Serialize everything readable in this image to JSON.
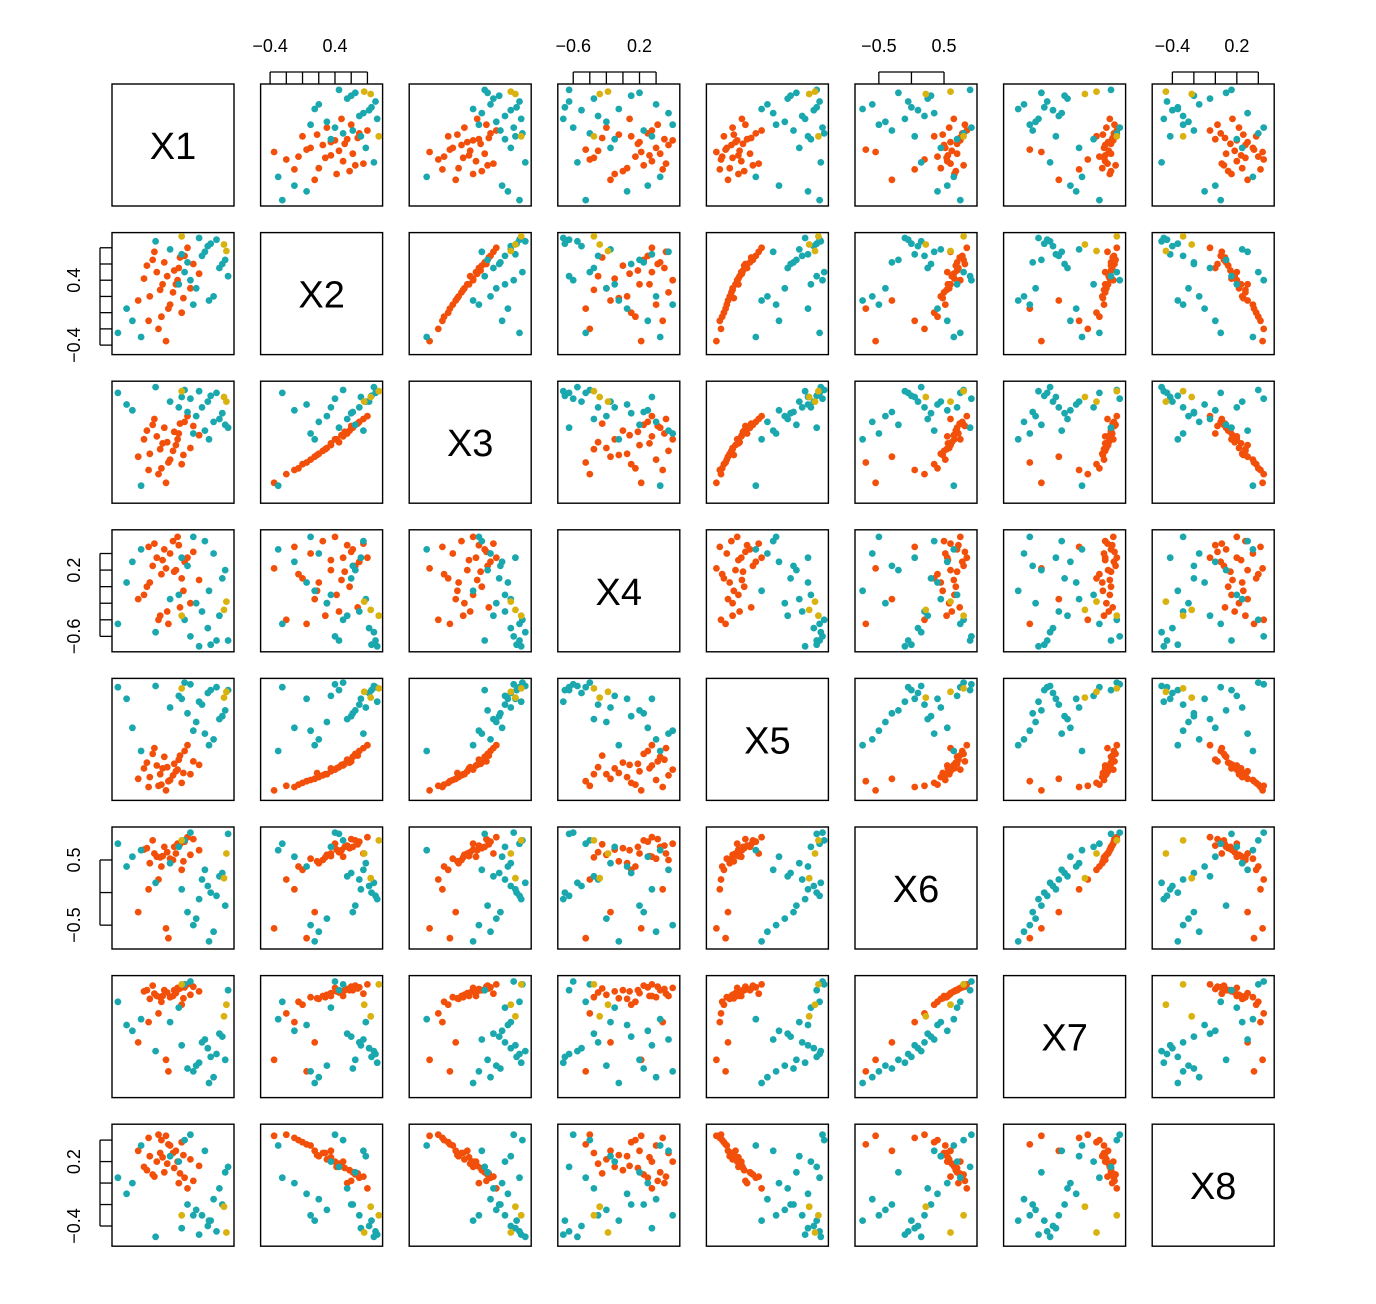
{
  "chart_data": {
    "type": "scatter",
    "subtype": "scatterplot-matrix",
    "title": "",
    "variables": [
      "X1",
      "X2",
      "X3",
      "X4",
      "X5",
      "X6",
      "X7",
      "X8"
    ],
    "variable_ranges": {
      "X1": [
        -1.0,
        1.0
      ],
      "X2": [
        -0.48,
        0.95
      ],
      "X3": [
        -1.0,
        1.0
      ],
      "X4": [
        -0.75,
        0.65
      ],
      "X5": [
        -1.0,
        1.0
      ],
      "X6": [
        -0.82,
        0.96
      ],
      "X7": [
        -1.0,
        1.0
      ],
      "X8": [
        -0.56,
        0.52
      ]
    },
    "axes": {
      "top": [
        {
          "column": "X2",
          "ticks": [
            -0.4,
            -0.2,
            0.0,
            0.2,
            0.4,
            0.6,
            0.8
          ],
          "tick_labels": [
            "−0.4",
            "0.4"
          ],
          "label_at": [
            -0.4,
            0.4
          ]
        },
        {
          "column": "X4",
          "ticks": [
            -0.6,
            -0.4,
            -0.2,
            0.0,
            0.2,
            0.4
          ],
          "tick_labels": [
            "−0.6",
            "0.2"
          ],
          "label_at": [
            -0.6,
            0.2
          ]
        },
        {
          "column": "X6",
          "ticks": [
            -0.5,
            0.0,
            0.5
          ],
          "tick_labels": [
            "−0.5",
            "0.5"
          ],
          "label_at": [
            -0.5,
            0.5
          ]
        },
        {
          "column": "X8",
          "ticks": [
            -0.4,
            -0.2,
            0.0,
            0.2,
            0.4
          ],
          "tick_labels": [
            "−0.4",
            "0.2"
          ],
          "label_at": [
            -0.4,
            0.2
          ]
        }
      ],
      "left": [
        {
          "row": "X2",
          "ticks": [
            -0.4,
            -0.2,
            0.0,
            0.2,
            0.4,
            0.6,
            0.8
          ],
          "tick_labels": [
            "−0.4",
            "0.4"
          ],
          "label_at": [
            -0.4,
            0.4
          ]
        },
        {
          "row": "X4",
          "ticks": [
            -0.6,
            -0.4,
            -0.2,
            0.0,
            0.2,
            0.4
          ],
          "tick_labels": [
            "−0.6",
            "0.2"
          ],
          "label_at": [
            -0.6,
            0.2
          ]
        },
        {
          "row": "X6",
          "ticks": [
            -0.5,
            0.0,
            0.5
          ],
          "tick_labels": [
            "−0.5",
            "0.5"
          ],
          "label_at": [
            -0.5,
            0.5
          ]
        },
        {
          "row": "X8",
          "ticks": [
            -0.4,
            -0.2,
            0.0,
            0.2,
            0.4
          ],
          "tick_labels": [
            "−0.4",
            "0.2"
          ],
          "label_at": [
            -0.4,
            0.2
          ]
        }
      ]
    },
    "groups": [
      {
        "color": "#F2500A",
        "label": ""
      },
      {
        "color": "#1AA8AE",
        "label": ""
      },
      {
        "color": "#D9B20F",
        "label": ""
      }
    ],
    "grid": false,
    "legend": "none",
    "points": [
      {
        "g": 0,
        "X1": -0.28,
        "X2": 0.5,
        "X3": 0.1,
        "X4": 0.35,
        "X5": -0.45,
        "X6": 0.55,
        "X7": 0.7,
        "X8": 0.2
      },
      {
        "g": 0,
        "X1": -0.15,
        "X2": 0.62,
        "X3": 0.25,
        "X4": 0.45,
        "X5": -0.3,
        "X6": 0.7,
        "X7": 0.8,
        "X8": 0.1
      },
      {
        "g": 0,
        "X1": 0.05,
        "X2": 0.35,
        "X3": -0.05,
        "X4": 0.2,
        "X5": -0.55,
        "X6": 0.6,
        "X7": 0.75,
        "X8": 0.3
      },
      {
        "g": 0,
        "X1": -0.4,
        "X2": 0.2,
        "X3": -0.2,
        "X4": 0.05,
        "X5": -0.65,
        "X6": 0.45,
        "X7": 0.65,
        "X8": 0.25
      },
      {
        "g": 0,
        "X1": 0.2,
        "X2": 0.7,
        "X3": 0.35,
        "X4": 0.3,
        "X5": -0.2,
        "X6": 0.78,
        "X7": 0.85,
        "X8": 0.05
      },
      {
        "g": 0,
        "X1": -0.05,
        "X2": 0.1,
        "X3": -0.3,
        "X4": 0.4,
        "X5": -0.7,
        "X6": 0.52,
        "X7": 0.68,
        "X8": 0.35
      },
      {
        "g": 0,
        "X1": -0.5,
        "X2": 0.42,
        "X3": 0.05,
        "X4": -0.1,
        "X5": -0.5,
        "X6": 0.66,
        "X7": 0.78,
        "X8": 0.15
      },
      {
        "g": 0,
        "X1": 0.1,
        "X2": 0.55,
        "X3": 0.15,
        "X4": 0.5,
        "X5": -0.35,
        "X6": 0.72,
        "X7": 0.82,
        "X8": 0.0
      },
      {
        "g": 0,
        "X1": -0.2,
        "X2": -0.05,
        "X3": -0.45,
        "X4": 0.15,
        "X5": -0.78,
        "X6": 0.4,
        "X7": 0.6,
        "X8": 0.4
      },
      {
        "g": 0,
        "X1": 0.3,
        "X2": 0.3,
        "X3": -0.1,
        "X4": -0.2,
        "X5": -0.6,
        "X6": 0.58,
        "X7": 0.72,
        "X8": 0.22
      },
      {
        "g": 0,
        "X1": -0.35,
        "X2": 0.65,
        "X3": 0.3,
        "X4": 0.25,
        "X5": -0.25,
        "X6": 0.8,
        "X7": 0.88,
        "X8": 0.08
      },
      {
        "g": 0,
        "X1": 0.0,
        "X2": 0.25,
        "X3": -0.15,
        "X4": 0.55,
        "X5": -0.62,
        "X6": 0.5,
        "X7": 0.7,
        "X8": 0.28
      },
      {
        "g": 0,
        "X1": -0.1,
        "X2": 0.45,
        "X3": 0.0,
        "X4": -0.3,
        "X5": -0.48,
        "X6": 0.62,
        "X7": 0.76,
        "X8": 0.18
      },
      {
        "g": 0,
        "X1": 0.15,
        "X2": 0.0,
        "X3": -0.38,
        "X4": 0.1,
        "X5": -0.75,
        "X6": 0.35,
        "X7": 0.55,
        "X8": 0.38
      },
      {
        "g": 0,
        "X1": -0.45,
        "X2": 0.58,
        "X3": 0.2,
        "X4": 0.0,
        "X5": -0.4,
        "X6": 0.68,
        "X7": 0.8,
        "X8": 0.12
      },
      {
        "g": 0,
        "X1": 0.25,
        "X2": 0.8,
        "X3": 0.45,
        "X4": 0.35,
        "X5": -0.1,
        "X6": 0.85,
        "X7": 0.9,
        "X8": -0.05
      },
      {
        "g": 0,
        "X1": -0.25,
        "X2": -0.2,
        "X3": -0.55,
        "X4": -0.4,
        "X5": -0.8,
        "X6": 0.2,
        "X7": 0.4,
        "X8": 0.45
      },
      {
        "g": 0,
        "X1": 0.08,
        "X2": 0.4,
        "X3": 0.05,
        "X4": 0.6,
        "X5": -0.52,
        "X6": 0.75,
        "X7": 0.84,
        "X8": 0.2
      },
      {
        "g": 0,
        "X1": -0.6,
        "X2": 0.15,
        "X3": -0.25,
        "X4": -0.15,
        "X5": -0.68,
        "X6": -0.3,
        "X7": -0.1,
        "X8": 0.3
      },
      {
        "g": 0,
        "X1": 0.35,
        "X2": 0.6,
        "X3": 0.28,
        "X4": 0.42,
        "X5": -0.38,
        "X6": 0.82,
        "X7": 0.86,
        "X8": 0.02
      },
      {
        "g": 0,
        "X1": -0.12,
        "X2": -0.35,
        "X3": -0.7,
        "X4": 0.22,
        "X5": -0.88,
        "X6": -0.55,
        "X7": -0.4,
        "X8": 0.44
      },
      {
        "g": 0,
        "X1": 0.18,
        "X2": 0.18,
        "X3": -0.22,
        "X4": -0.05,
        "X5": -0.58,
        "X6": 0.48,
        "X7": 0.66,
        "X8": 0.26
      },
      {
        "g": 0,
        "X1": -0.32,
        "X2": 0.75,
        "X3": 0.4,
        "X4": 0.52,
        "X5": -0.15,
        "X6": 0.6,
        "X7": 0.74,
        "X8": 0.06
      },
      {
        "g": 0,
        "X1": 0.45,
        "X2": 0.48,
        "X3": 0.12,
        "X4": 0.08,
        "X5": -0.44,
        "X6": 0.65,
        "X7": 0.78,
        "X8": 0.16
      },
      {
        "g": 0,
        "X1": -0.08,
        "X2": 0.05,
        "X3": -0.35,
        "X4": -0.45,
        "X5": -0.72,
        "X6": -0.7,
        "X7": -0.6,
        "X8": 0.36
      },
      {
        "g": 0,
        "X1": -0.18,
        "X2": 0.35,
        "X3": -0.02,
        "X4": 0.32,
        "X5": -0.5,
        "X6": 0.56,
        "X7": 0.7,
        "X8": 0.24
      },
      {
        "g": 0,
        "X1": 0.12,
        "X2": 0.68,
        "X3": 0.32,
        "X4": -0.25,
        "X5": -0.28,
        "X6": 0.74,
        "X7": 0.83,
        "X8": 0.09
      },
      {
        "g": 0,
        "X1": -0.42,
        "X2": -0.1,
        "X3": -0.48,
        "X4": 0.48,
        "X5": -0.82,
        "X6": 0.05,
        "X7": 0.25,
        "X8": 0.42
      },
      {
        "g": 0,
        "X1": 0.02,
        "X2": 0.52,
        "X3": 0.18,
        "X4": 0.18,
        "X5": -0.42,
        "X6": 0.7,
        "X7": 0.8,
        "X8": 0.14
      },
      {
        "g": 0,
        "X1": -0.22,
        "X2": 0.28,
        "X3": -0.12,
        "X4": -0.35,
        "X5": -0.6,
        "X6": 0.54,
        "X7": 0.68,
        "X8": 0.28
      },
      {
        "g": 1,
        "X1": 0.6,
        "X2": 0.82,
        "X3": 0.7,
        "X4": -0.5,
        "X5": 0.8,
        "X6": 0.1,
        "X7": -0.2,
        "X8": -0.4
      },
      {
        "g": 1,
        "X1": 0.75,
        "X2": 0.9,
        "X3": 0.85,
        "X4": -0.65,
        "X5": 0.9,
        "X6": -0.05,
        "X7": -0.3,
        "X8": -0.45
      },
      {
        "g": 1,
        "X1": 0.5,
        "X2": 0.7,
        "X3": 0.6,
        "X4": -0.3,
        "X5": 0.6,
        "X6": 0.2,
        "X7": -0.1,
        "X8": -0.3
      },
      {
        "g": 1,
        "X1": 0.85,
        "X2": 0.6,
        "X3": 0.5,
        "X4": 0.1,
        "X5": 0.4,
        "X6": 0.3,
        "X7": 0.0,
        "X8": -0.2
      },
      {
        "g": 1,
        "X1": 0.3,
        "X2": 0.4,
        "X3": 0.75,
        "X4": -0.6,
        "X5": 0.95,
        "X6": 0.92,
        "X7": 0.95,
        "X8": 0.45
      },
      {
        "g": 1,
        "X1": -0.7,
        "X2": -0.1,
        "X3": 0.55,
        "X4": 0.3,
        "X5": 0.2,
        "X6": 0.55,
        "X7": 0.1,
        "X8": 0.0
      },
      {
        "g": 1,
        "X1": 0.65,
        "X2": 0.85,
        "X3": 0.8,
        "X4": -0.7,
        "X5": 0.85,
        "X6": 0.0,
        "X7": -0.35,
        "X8": -0.35
      },
      {
        "g": 1,
        "X1": 0.4,
        "X2": 0.3,
        "X3": 0.45,
        "X4": -0.2,
        "X5": 0.3,
        "X6": -0.4,
        "X7": -0.5,
        "X8": -0.25
      },
      {
        "g": 1,
        "X1": -0.8,
        "X2": 0.05,
        "X3": 0.65,
        "X4": 0.05,
        "X5": 0.7,
        "X6": 0.4,
        "X7": 0.2,
        "X8": -0.1
      },
      {
        "g": 1,
        "X1": 0.55,
        "X2": 0.75,
        "X3": 0.2,
        "X4": 0.55,
        "X5": 0.1,
        "X6": 0.35,
        "X7": -0.05,
        "X8": 0.3
      },
      {
        "g": 1,
        "X1": 0.2,
        "X2": 0.5,
        "X3": 0.9,
        "X4": -0.4,
        "X5": 0.98,
        "X6": 0.8,
        "X7": 0.9,
        "X8": 0.4
      },
      {
        "g": 1,
        "X1": 0.7,
        "X2": 0.2,
        "X3": 0.35,
        "X4": 0.4,
        "X5": 0.0,
        "X6": -0.6,
        "X7": -0.7,
        "X8": -0.15
      },
      {
        "g": 1,
        "X1": -0.3,
        "X2": 0.88,
        "X3": 0.95,
        "X4": -0.55,
        "X5": 0.92,
        "X6": 0.15,
        "X7": -0.25,
        "X8": -0.5
      },
      {
        "g": 1,
        "X1": 0.9,
        "X2": 0.65,
        "X3": 0.3,
        "X4": 0.2,
        "X5": 0.5,
        "X6": -0.2,
        "X7": -0.4,
        "X8": 0.1
      },
      {
        "g": 1,
        "X1": 0.1,
        "X2": 0.35,
        "X3": 0.6,
        "X4": -0.1,
        "X5": 0.75,
        "X6": 0.7,
        "X7": 0.5,
        "X8": 0.2
      },
      {
        "g": 1,
        "X1": 0.45,
        "X2": 0.92,
        "X3": 0.88,
        "X4": -0.72,
        "X5": 0.65,
        "X6": -0.1,
        "X7": -0.45,
        "X8": -0.48
      },
      {
        "g": 1,
        "X1": -0.55,
        "X2": -0.3,
        "X3": -0.75,
        "X4": 0.45,
        "X5": -0.2,
        "X6": 0.65,
        "X7": 0.3,
        "X8": 0.35
      },
      {
        "g": 1,
        "X1": 0.8,
        "X2": 0.55,
        "X3": 0.4,
        "X4": -0.35,
        "X5": 0.35,
        "X6": 0.25,
        "X7": 0.05,
        "X8": -0.05
      },
      {
        "g": 1,
        "X1": 0.35,
        "X2": 0.1,
        "X3": 0.15,
        "X4": 0.6,
        "X5": 0.15,
        "X6": -0.5,
        "X7": -0.6,
        "X8": -0.3
      },
      {
        "g": 1,
        "X1": -0.05,
        "X2": 0.78,
        "X3": 0.7,
        "X4": -0.15,
        "X5": 0.55,
        "X6": 0.45,
        "X7": 0.25,
        "X8": 0.25
      },
      {
        "g": 1,
        "X1": 0.95,
        "X2": 0.45,
        "X3": 0.25,
        "X4": -0.65,
        "X5": 0.85,
        "X6": 0.9,
        "X7": 0.8,
        "X8": 0.15
      },
      {
        "g": 1,
        "X1": 0.25,
        "X2": 0.62,
        "X3": 0.52,
        "X4": 0.25,
        "X5": 0.45,
        "X6": -0.3,
        "X7": -0.55,
        "X8": -0.2
      },
      {
        "g": 1,
        "X1": -0.95,
        "X2": -0.25,
        "X3": 0.85,
        "X4": -0.45,
        "X5": 0.9,
        "X6": 0.75,
        "X7": 0.6,
        "X8": 0.05
      },
      {
        "g": 1,
        "X1": 0.62,
        "X2": 0.15,
        "X3": 0.05,
        "X4": -0.05,
        "X5": -0.1,
        "X6": -0.75,
        "X7": -0.8,
        "X8": -0.35
      },
      {
        "g": 1,
        "X1": 0.15,
        "X2": 0.72,
        "X3": 0.78,
        "X4": 0.35,
        "X5": 0.7,
        "X6": 0.05,
        "X7": -0.15,
        "X8": -0.42
      },
      {
        "g": 2,
        "X1": 0.88,
        "X2": 0.84,
        "X3": 0.78,
        "X4": -0.28,
        "X5": 0.72,
        "X6": 0.22,
        "X7": 0.35,
        "X8": -0.22
      },
      {
        "g": 2,
        "X1": 0.15,
        "X2": 0.94,
        "X3": 0.88,
        "X4": -0.35,
        "X5": 0.88,
        "X6": 0.8,
        "X7": 0.9,
        "X8": -0.3
      },
      {
        "g": 2,
        "X1": 0.92,
        "X2": 0.76,
        "X3": 0.7,
        "X4": -0.18,
        "X5": 0.82,
        "X6": 0.6,
        "X7": 0.55,
        "X8": -0.46
      }
    ]
  }
}
